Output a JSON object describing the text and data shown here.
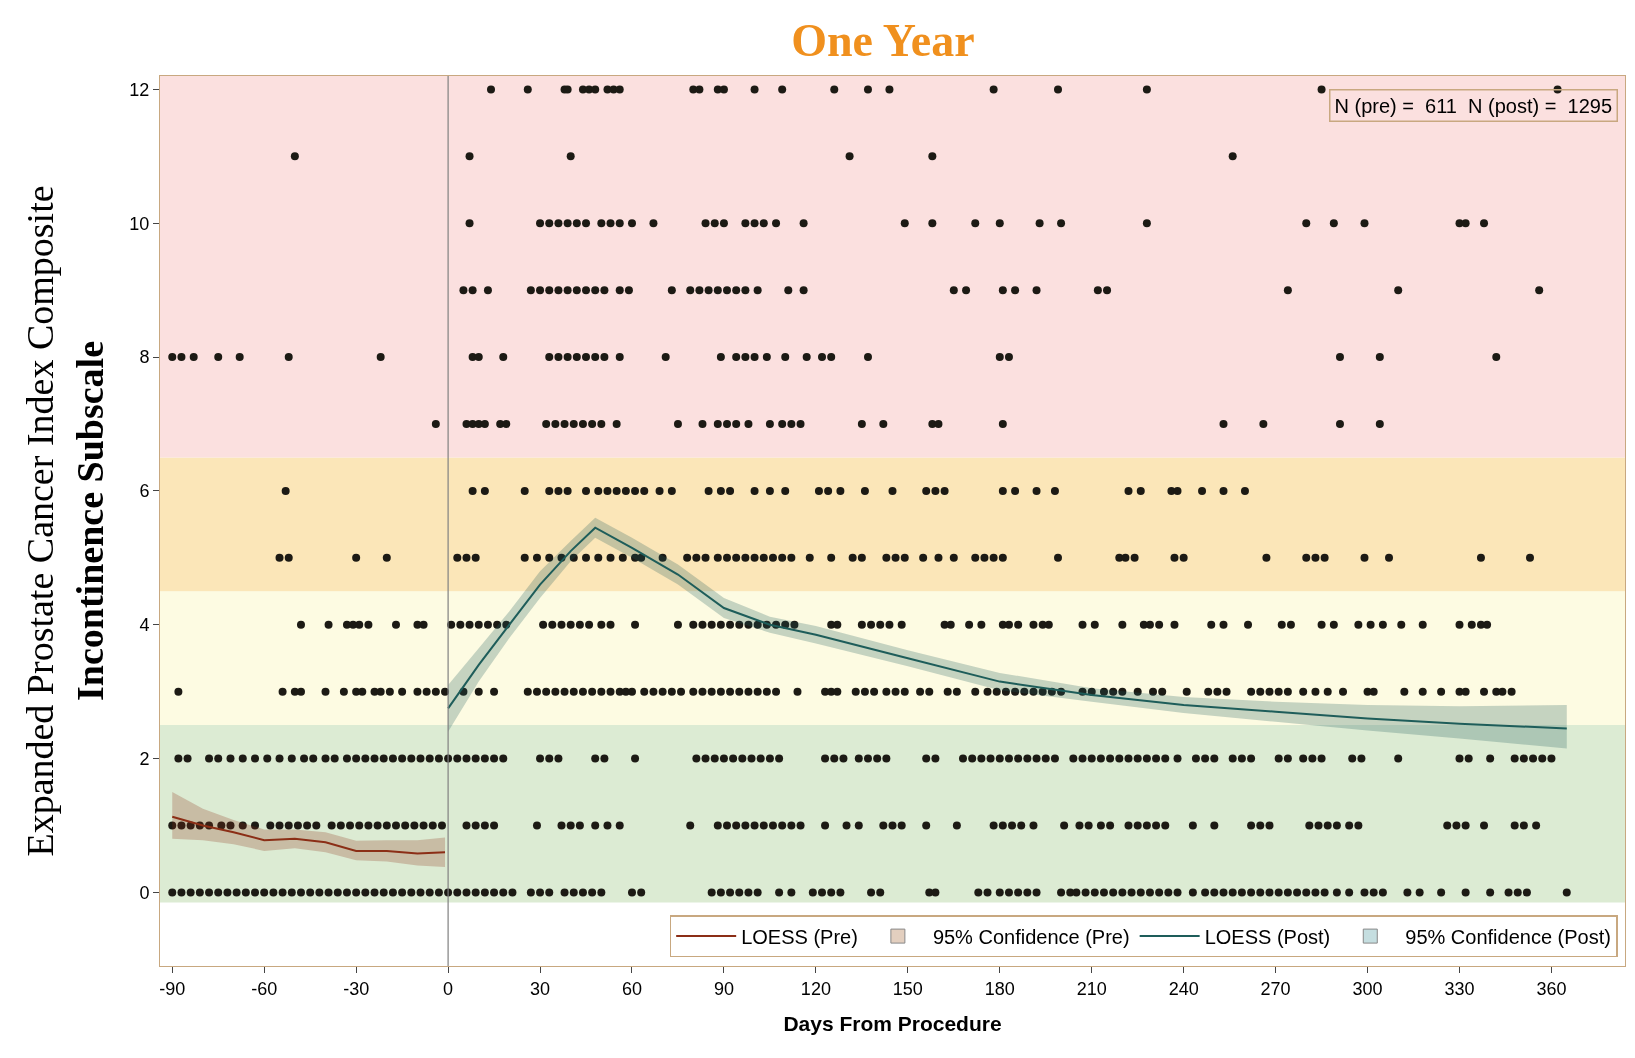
{
  "chart_data": {
    "type": "scatter",
    "title": "One Year",
    "xlabel": "Days From Procedure",
    "ylabel": "Expanded Prostate Cancer Index Composite\nIncontinence Subscale",
    "xlim": [
      -94,
      384
    ],
    "ylim": [
      -1.1,
      12.2
    ],
    "xticks": [
      -90,
      -60,
      -30,
      0,
      30,
      60,
      90,
      120,
      150,
      180,
      210,
      240,
      270,
      300,
      330,
      360
    ],
    "yticks": [
      0,
      2,
      4,
      6,
      8,
      10,
      12
    ],
    "grid": false,
    "legend": "bottom right",
    "annotations": [
      "N (pre) =  611  N (post) =  1295"
    ],
    "ref_lines": [
      {
        "axis": "x",
        "value": 0,
        "color": "#808080"
      }
    ],
    "bands": [
      {
        "axis": "y",
        "from": -0.15,
        "to": 2.5,
        "color": "#dcebd3"
      },
      {
        "axis": "y",
        "from": 2.5,
        "to": 4.5,
        "color": "#fdfbe2"
      },
      {
        "axis": "y",
        "from": 4.5,
        "to": 6.5,
        "color": "#fbe6b8"
      },
      {
        "axis": "y",
        "from": 6.5,
        "to": 12.2,
        "color": "#fbe0df"
      }
    ],
    "series": [
      {
        "type": "scatter",
        "color": "#1c1a14",
        "x": [
          14,
          26,
          38,
          39,
          44,
          46,
          48,
          52,
          54,
          56,
          80,
          82,
          88,
          90,
          100,
          109,
          126,
          137,
          144,
          178,
          199,
          228,
          285,
          362
        ],
        "values": [
          12,
          12,
          12,
          12,
          12,
          12,
          12,
          12,
          12,
          12,
          12,
          12,
          12,
          12,
          12,
          12,
          12,
          12,
          12,
          12,
          12,
          12,
          12,
          12
        ]
      },
      {
        "type": "scatter",
        "color": "#1c1a14",
        "x": [
          -50,
          7,
          40,
          131,
          158,
          256
        ],
        "values": [
          11,
          11,
          11,
          11,
          11,
          11
        ]
      },
      {
        "type": "scatter",
        "color": "#1c1a14",
        "x": [
          7,
          30,
          33,
          36,
          39,
          42,
          45,
          50,
          53,
          56,
          60,
          67,
          84,
          87,
          90,
          97,
          100,
          103,
          107,
          116,
          149,
          158,
          172,
          180,
          193,
          200,
          228,
          280,
          289,
          299,
          330,
          332,
          338
        ],
        "values": [
          10,
          10,
          10,
          10,
          10,
          10,
          10,
          10,
          10,
          10,
          10,
          10,
          10,
          10,
          10,
          10,
          10,
          10,
          10,
          10,
          10,
          10,
          10,
          10,
          10,
          10,
          10,
          10,
          10,
          10,
          10,
          10,
          10
        ]
      },
      {
        "type": "scatter",
        "color": "#1c1a14",
        "x": [
          5,
          8,
          13,
          27,
          30,
          33,
          36,
          39,
          42,
          45,
          48,
          51,
          56,
          59,
          73,
          79,
          82,
          85,
          88,
          91,
          94,
          97,
          101,
          111,
          116,
          165,
          169,
          181,
          185,
          192,
          212,
          215,
          274,
          310,
          356
        ],
        "values": [
          9,
          9,
          9,
          9,
          9,
          9,
          9,
          9,
          9,
          9,
          9,
          9,
          9,
          9,
          9,
          9,
          9,
          9,
          9,
          9,
          9,
          9,
          9,
          9,
          9,
          9,
          9,
          9,
          9,
          9,
          9,
          9,
          9,
          9,
          9
        ]
      },
      {
        "type": "scatter",
        "color": "#1c1a14",
        "x": [
          -90,
          -87,
          -83,
          -75,
          -68,
          -52,
          -22,
          8,
          10,
          18,
          33,
          36,
          39,
          42,
          45,
          48,
          51,
          56,
          71,
          89,
          94,
          97,
          100,
          104,
          110,
          117,
          122,
          125,
          137,
          180,
          183,
          291,
          304,
          342
        ],
        "values": [
          8,
          8,
          8,
          8,
          8,
          8,
          8,
          8,
          8,
          8,
          8,
          8,
          8,
          8,
          8,
          8,
          8,
          8,
          8,
          8,
          8,
          8,
          8,
          8,
          8,
          8,
          8,
          8,
          8,
          8,
          8,
          8,
          8,
          8
        ]
      },
      {
        "type": "scatter",
        "color": "#1c1a14",
        "x": [
          -4,
          6,
          8,
          10,
          12,
          17,
          19,
          32,
          35,
          38,
          41,
          44,
          47,
          50,
          55,
          75,
          83,
          88,
          91,
          94,
          98,
          105,
          109,
          112,
          115,
          135,
          142,
          158,
          160,
          181,
          253,
          266,
          291,
          304
        ],
        "values": [
          7,
          7,
          7,
          7,
          7,
          7,
          7,
          7,
          7,
          7,
          7,
          7,
          7,
          7,
          7,
          7,
          7,
          7,
          7,
          7,
          7,
          7,
          7,
          7,
          7,
          7,
          7,
          7,
          7,
          7,
          7,
          7,
          7,
          7
        ]
      },
      {
        "type": "scatter",
        "color": "#1c1a14",
        "x": [
          -53,
          8,
          12,
          25,
          33,
          36,
          39,
          45,
          49,
          52,
          55,
          58,
          61,
          64,
          69,
          73,
          85,
          89,
          92,
          100,
          105,
          110,
          121,
          124,
          128,
          136,
          145,
          156,
          159,
          162,
          181,
          185,
          192,
          198,
          222,
          226,
          236,
          238,
          246,
          253,
          260
        ],
        "values": [
          6,
          6,
          6,
          6,
          6,
          6,
          6,
          6,
          6,
          6,
          6,
          6,
          6,
          6,
          6,
          6,
          6,
          6,
          6,
          6,
          6,
          6,
          6,
          6,
          6,
          6,
          6,
          6,
          6,
          6,
          6,
          6,
          6,
          6,
          6,
          6,
          6,
          6,
          6,
          6,
          6
        ]
      },
      {
        "type": "scatter",
        "color": "#1c1a14",
        "x": [
          -55,
          -52,
          -30,
          -20,
          3,
          6,
          9,
          25,
          29,
          33,
          37,
          41,
          45,
          49,
          53,
          57,
          61,
          63,
          70,
          78,
          81,
          84,
          88,
          91,
          94,
          97,
          100,
          103,
          106,
          109,
          112,
          118,
          125,
          132,
          135,
          143,
          146,
          149,
          155,
          160,
          165,
          172,
          175,
          178,
          181,
          199,
          219,
          221,
          224,
          237,
          240,
          267,
          280,
          283,
          286,
          299,
          307,
          337,
          353
        ],
        "values": [
          5,
          5,
          5,
          5,
          5,
          5,
          5,
          5,
          5,
          5,
          5,
          5,
          5,
          5,
          5,
          5,
          5,
          5,
          5,
          5,
          5,
          5,
          5,
          5,
          5,
          5,
          5,
          5,
          5,
          5,
          5,
          5,
          5,
          5,
          5,
          5,
          5,
          5,
          5,
          5,
          5,
          5,
          5,
          5,
          5,
          5,
          5,
          5,
          5,
          5,
          5,
          5,
          5,
          5,
          5,
          5,
          5,
          5,
          5
        ]
      },
      {
        "type": "scatter",
        "color": "#1c1a14",
        "x": [
          -48,
          -39,
          -33,
          -31,
          -29,
          -26,
          -17,
          -10,
          -8,
          1,
          4,
          7,
          10,
          13,
          16,
          19,
          31,
          34,
          37,
          40,
          43,
          46,
          50,
          53,
          61,
          75,
          80,
          83,
          86,
          89,
          92,
          95,
          98,
          101,
          104,
          107,
          110,
          113,
          125,
          127,
          135,
          138,
          141,
          144,
          148,
          162,
          164,
          170,
          174,
          181,
          183,
          186,
          191,
          194,
          196,
          207,
          211,
          220,
          227,
          229,
          232,
          237,
          249,
          253,
          261,
          272,
          275,
          285,
          289,
          297,
          301,
          305,
          311,
          318,
          330,
          334,
          337,
          339
        ],
        "values": [
          4,
          4,
          4,
          4,
          4,
          4,
          4,
          4,
          4,
          4,
          4,
          4,
          4,
          4,
          4,
          4,
          4,
          4,
          4,
          4,
          4,
          4,
          4,
          4,
          4,
          4,
          4,
          4,
          4,
          4,
          4,
          4,
          4,
          4,
          4,
          4,
          4,
          4,
          4,
          4,
          4,
          4,
          4,
          4,
          4,
          4,
          4,
          4,
          4,
          4,
          4,
          4,
          4,
          4,
          4,
          4,
          4,
          4,
          4,
          4,
          4,
          4,
          4,
          4,
          4,
          4,
          4,
          4,
          4,
          4,
          4,
          4,
          4,
          4,
          4,
          4,
          4,
          4
        ]
      },
      {
        "type": "scatter",
        "color": "#1c1a14",
        "x": [
          -88,
          -54,
          -50,
          -48,
          -40,
          -34,
          -30,
          -28,
          -24,
          -22,
          -19,
          -15,
          -10,
          -7,
          -4,
          -1,
          5,
          10,
          15,
          26,
          29,
          32,
          35,
          38,
          41,
          44,
          47,
          50,
          53,
          56,
          58,
          60,
          64,
          67,
          70,
          73,
          76,
          80,
          83,
          86,
          89,
          92,
          95,
          98,
          101,
          104,
          107,
          114,
          123,
          125,
          127,
          133,
          136,
          139,
          143,
          146,
          149,
          154,
          157,
          163,
          166,
          172,
          176,
          179,
          182,
          185,
          188,
          191,
          194,
          197,
          200,
          207,
          210,
          214,
          217,
          220,
          225,
          230,
          233,
          241,
          248,
          251,
          254,
          262,
          265,
          268,
          271,
          274,
          279,
          283,
          287,
          292,
          300,
          302,
          312,
          318,
          324,
          330,
          332,
          338,
          342,
          344,
          347
        ],
        "values": [
          3,
          3,
          3,
          3,
          3,
          3,
          3,
          3,
          3,
          3,
          3,
          3,
          3,
          3,
          3,
          3,
          3,
          3,
          3,
          3,
          3,
          3,
          3,
          3,
          3,
          3,
          3,
          3,
          3,
          3,
          3,
          3,
          3,
          3,
          3,
          3,
          3,
          3,
          3,
          3,
          3,
          3,
          3,
          3,
          3,
          3,
          3,
          3,
          3,
          3,
          3,
          3,
          3,
          3,
          3,
          3,
          3,
          3,
          3,
          3,
          3,
          3,
          3,
          3,
          3,
          3,
          3,
          3,
          3,
          3,
          3,
          3,
          3,
          3,
          3,
          3,
          3,
          3,
          3,
          3,
          3,
          3,
          3,
          3,
          3,
          3,
          3,
          3,
          3,
          3,
          3,
          3,
          3,
          3,
          3,
          3,
          3,
          3,
          3,
          3,
          3,
          3,
          3
        ]
      },
      {
        "type": "scatter",
        "color": "#1c1a14",
        "x": [
          -88,
          -85,
          -78,
          -75,
          -71,
          -67,
          -63,
          -59,
          -55,
          -51,
          -47,
          -44,
          -40,
          -37,
          -33,
          -30,
          -27,
          -24,
          -21,
          -18,
          -15,
          -12,
          -9,
          -6,
          -3,
          0,
          3,
          6,
          9,
          12,
          15,
          18,
          30,
          33,
          36,
          48,
          51,
          61,
          81,
          84,
          87,
          90,
          93,
          96,
          99,
          102,
          105,
          108,
          123,
          126,
          129,
          134,
          137,
          140,
          143,
          156,
          159,
          168,
          171,
          174,
          177,
          180,
          183,
          186,
          189,
          192,
          195,
          198,
          204,
          207,
          210,
          213,
          216,
          219,
          222,
          225,
          228,
          231,
          234,
          238,
          244,
          247,
          250,
          256,
          259,
          262,
          271,
          274,
          279,
          282,
          285,
          295,
          298,
          310,
          330,
          333,
          340,
          348,
          351,
          354,
          357,
          360
        ],
        "values": [
          2,
          2,
          2,
          2,
          2,
          2,
          2,
          2,
          2,
          2,
          2,
          2,
          2,
          2,
          2,
          2,
          2,
          2,
          2,
          2,
          2,
          2,
          2,
          2,
          2,
          2,
          2,
          2,
          2,
          2,
          2,
          2,
          2,
          2,
          2,
          2,
          2,
          2,
          2,
          2,
          2,
          2,
          2,
          2,
          2,
          2,
          2,
          2,
          2,
          2,
          2,
          2,
          2,
          2,
          2,
          2,
          2,
          2,
          2,
          2,
          2,
          2,
          2,
          2,
          2,
          2,
          2,
          2,
          2,
          2,
          2,
          2,
          2,
          2,
          2,
          2,
          2,
          2,
          2,
          2,
          2,
          2,
          2,
          2,
          2,
          2,
          2,
          2,
          2,
          2,
          2,
          2,
          2,
          2,
          2,
          2,
          2,
          2,
          2,
          2,
          2,
          2
        ]
      },
      {
        "type": "scatter",
        "color": "#1c1a14",
        "x": [
          -90,
          -87,
          -84,
          -81,
          -78,
          -74,
          -71,
          -67,
          -63,
          -58,
          -55,
          -52,
          -49,
          -46,
          -43,
          -38,
          -35,
          -32,
          -29,
          -26,
          -23,
          -20,
          -17,
          -14,
          -11,
          -8,
          -5,
          -2,
          6,
          9,
          12,
          15,
          29,
          37,
          40,
          43,
          48,
          52,
          56,
          79,
          88,
          91,
          94,
          97,
          100,
          103,
          106,
          109,
          112,
          115,
          123,
          130,
          134,
          142,
          145,
          148,
          156,
          166,
          178,
          181,
          184,
          187,
          191,
          201,
          206,
          209,
          213,
          216,
          222,
          225,
          228,
          231,
          234,
          243,
          250,
          262,
          265,
          268,
          281,
          284,
          287,
          290,
          294,
          297,
          326,
          329,
          332,
          338,
          348,
          351,
          355
        ],
        "values": [
          1,
          1,
          1,
          1,
          1,
          1,
          1,
          1,
          1,
          1,
          1,
          1,
          1,
          1,
          1,
          1,
          1,
          1,
          1,
          1,
          1,
          1,
          1,
          1,
          1,
          1,
          1,
          1,
          1,
          1,
          1,
          1,
          1,
          1,
          1,
          1,
          1,
          1,
          1,
          1,
          1,
          1,
          1,
          1,
          1,
          1,
          1,
          1,
          1,
          1,
          1,
          1,
          1,
          1,
          1,
          1,
          1,
          1,
          1,
          1,
          1,
          1,
          1,
          1,
          1,
          1,
          1,
          1,
          1,
          1,
          1,
          1,
          1,
          1,
          1,
          1,
          1,
          1,
          1,
          1,
          1,
          1,
          1,
          1,
          1,
          1,
          1,
          1,
          1,
          1,
          1
        ]
      },
      {
        "type": "scatter",
        "color": "#1c1a14",
        "x": [
          -90,
          -87,
          -84,
          -81,
          -78,
          -75,
          -72,
          -69,
          -66,
          -63,
          -60,
          -57,
          -54,
          -51,
          -48,
          -45,
          -42,
          -39,
          -36,
          -33,
          -30,
          -27,
          -24,
          -21,
          -18,
          -15,
          -12,
          -9,
          -6,
          -3,
          0,
          3,
          6,
          9,
          12,
          15,
          18,
          21,
          27,
          30,
          33,
          38,
          41,
          44,
          47,
          50,
          60,
          63,
          86,
          89,
          92,
          95,
          98,
          101,
          108,
          112,
          119,
          122,
          125,
          128,
          138,
          141,
          157,
          159,
          173,
          176,
          180,
          183,
          186,
          189,
          192,
          200,
          203,
          205,
          208,
          211,
          214,
          217,
          220,
          223,
          226,
          229,
          232,
          235,
          238,
          243,
          247,
          250,
          253,
          256,
          259,
          262,
          265,
          268,
          271,
          274,
          277,
          280,
          283,
          286,
          290,
          294,
          299,
          302,
          305,
          313,
          317,
          324,
          332,
          340,
          346,
          349,
          352,
          365
        ],
        "values": [
          0,
          0,
          0,
          0,
          0,
          0,
          0,
          0,
          0,
          0,
          0,
          0,
          0,
          0,
          0,
          0,
          0,
          0,
          0,
          0,
          0,
          0,
          0,
          0,
          0,
          0,
          0,
          0,
          0,
          0,
          0,
          0,
          0,
          0,
          0,
          0,
          0,
          0,
          0,
          0,
          0,
          0,
          0,
          0,
          0,
          0,
          0,
          0,
          0,
          0,
          0,
          0,
          0,
          0,
          0,
          0,
          0,
          0,
          0,
          0,
          0,
          0,
          0,
          0,
          0,
          0,
          0,
          0,
          0,
          0,
          0,
          0,
          0,
          0,
          0,
          0,
          0,
          0,
          0,
          0,
          0,
          0,
          0,
          0,
          0,
          0,
          0,
          0,
          0,
          0,
          0,
          0,
          0,
          0,
          0,
          0,
          0,
          0,
          0,
          0,
          0,
          0,
          0,
          0,
          0,
          0,
          0,
          0,
          0,
          0,
          0,
          0,
          0,
          0
        ]
      },
      {
        "type": "line",
        "name": "LOESS (Pre)",
        "marker": "none",
        "color": "#8b2e16",
        "x": [
          -90,
          -80,
          -70,
          -60,
          -50,
          -40,
          -30,
          -20,
          -10,
          -1
        ],
        "values": [
          1.13,
          1.0,
          0.9,
          0.78,
          0.8,
          0.75,
          0.62,
          0.62,
          0.58,
          0.6
        ],
        "lower": [
          0.8,
          0.78,
          0.72,
          0.62,
          0.66,
          0.6,
          0.48,
          0.46,
          0.4,
          0.38
        ],
        "upper": [
          1.5,
          1.25,
          1.08,
          0.94,
          0.94,
          0.9,
          0.77,
          0.78,
          0.78,
          0.82
        ]
      },
      {
        "type": "area",
        "name": "95% Confidence (Pre)",
        "color": "#c09470"
      },
      {
        "type": "line",
        "name": "LOESS (Post)",
        "marker": "none",
        "color": "#1e5d5a",
        "x": [
          0,
          10,
          20,
          30,
          40,
          48,
          60,
          75,
          90,
          105,
          120,
          150,
          180,
          210,
          240,
          270,
          300,
          330,
          365
        ],
        "values": [
          2.75,
          3.4,
          4.0,
          4.6,
          5.1,
          5.45,
          5.15,
          4.75,
          4.25,
          4.0,
          3.85,
          3.5,
          3.15,
          2.95,
          2.8,
          2.7,
          2.6,
          2.52,
          2.45
        ],
        "lower": [
          2.4,
          3.15,
          3.8,
          4.4,
          4.95,
          5.3,
          5.0,
          4.6,
          4.1,
          3.88,
          3.72,
          3.38,
          3.02,
          2.85,
          2.68,
          2.55,
          2.42,
          2.3,
          2.15
        ],
        "upper": [
          3.1,
          3.65,
          4.2,
          4.8,
          5.25,
          5.6,
          5.3,
          4.9,
          4.4,
          4.12,
          3.98,
          3.62,
          3.28,
          3.05,
          2.92,
          2.85,
          2.8,
          2.78,
          2.8
        ]
      },
      {
        "type": "area",
        "name": "95% Confidence (Post)",
        "color": "#7fb5bb"
      }
    ]
  }
}
